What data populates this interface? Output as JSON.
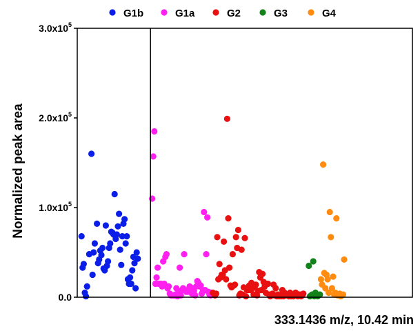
{
  "chart_data": {
    "type": "scatter",
    "title": "",
    "caption": "333.1436 m/z, 10.42 min",
    "xlabel": "",
    "ylabel": "Normalized peak area",
    "ylim": [
      0,
      300000
    ],
    "xlim": [
      0,
      300
    ],
    "y_ticks": [
      {
        "value": 0,
        "mantissa": "0.0",
        "exponent": ""
      },
      {
        "value": 100000,
        "mantissa": "1.0x10",
        "exponent": "5"
      },
      {
        "value": 200000,
        "mantissa": "2.0x10",
        "exponent": "5"
      },
      {
        "value": 300000,
        "mantissa": "3.0x10",
        "exponent": "5"
      }
    ],
    "group_separator_x": 64.5,
    "grid": false,
    "legend_position": "top",
    "series": [
      {
        "name": "G1b",
        "color": "#0a1ee8",
        "points": [
          [
            2,
            68000
          ],
          [
            3,
            33000
          ],
          [
            4,
            37000
          ],
          [
            5,
            5000
          ],
          [
            6,
            1000
          ],
          [
            7,
            12000
          ],
          [
            9,
            48000
          ],
          [
            11,
            160000
          ],
          [
            12,
            25000
          ],
          [
            13,
            50000
          ],
          [
            14,
            60000
          ],
          [
            16,
            82000
          ],
          [
            17,
            38000
          ],
          [
            18,
            42000
          ],
          [
            19,
            52000
          ],
          [
            20,
            47000
          ],
          [
            21,
            55000
          ],
          [
            22,
            32000
          ],
          [
            23,
            30000
          ],
          [
            24,
            80000
          ],
          [
            25,
            35000
          ],
          [
            26,
            40000
          ],
          [
            27,
            55000
          ],
          [
            28,
            60000
          ],
          [
            29,
            73000
          ],
          [
            30,
            72000
          ],
          [
            31,
            70000
          ],
          [
            32,
            115000
          ],
          [
            33,
            65000
          ],
          [
            34,
            70000
          ],
          [
            35,
            79000
          ],
          [
            36,
            93000
          ],
          [
            37,
            53000
          ],
          [
            38,
            36000
          ],
          [
            39,
            68000
          ],
          [
            40,
            82000
          ],
          [
            41,
            87000
          ],
          [
            42,
            60000
          ],
          [
            43,
            68000
          ],
          [
            44,
            20000
          ],
          [
            45,
            15000
          ],
          [
            46,
            22000
          ],
          [
            47,
            15000
          ],
          [
            48,
            30000
          ],
          [
            49,
            45000
          ],
          [
            50,
            38000
          ],
          [
            51,
            10000
          ],
          [
            52,
            50000
          ],
          [
            53,
            43000
          ]
        ]
      },
      {
        "name": "G1a",
        "color": "#ff20f0",
        "points": [
          [
            66,
            110000
          ],
          [
            67,
            157000
          ],
          [
            68,
            185000
          ],
          [
            69,
            15000
          ],
          [
            70,
            22000
          ],
          [
            71,
            33000
          ],
          [
            72,
            15000
          ],
          [
            73,
            15000
          ],
          [
            74,
            15000
          ],
          [
            75,
            12000
          ],
          [
            76,
            40000
          ],
          [
            77,
            15000
          ],
          [
            78,
            45000
          ],
          [
            79,
            48000
          ],
          [
            80,
            10000
          ],
          [
            81,
            12000
          ],
          [
            82,
            4000
          ],
          [
            83,
            2000
          ],
          [
            84,
            2000
          ],
          [
            85,
            2000
          ],
          [
            86,
            2000
          ],
          [
            87,
            3000
          ],
          [
            88,
            10000
          ],
          [
            89,
            1000
          ],
          [
            90,
            5000
          ],
          [
            91,
            33000
          ],
          [
            92,
            2000
          ],
          [
            93,
            8000
          ],
          [
            94,
            10000
          ],
          [
            95,
            48000
          ],
          [
            96,
            8000
          ],
          [
            97,
            6000
          ],
          [
            98,
            6000
          ],
          [
            99,
            8000
          ],
          [
            100,
            12000
          ],
          [
            101,
            6000
          ],
          [
            102,
            4000
          ],
          [
            103,
            10000
          ],
          [
            104,
            7000
          ],
          [
            105,
            2000
          ],
          [
            106,
            12000
          ],
          [
            107,
            18000
          ],
          [
            108,
            16000
          ],
          [
            109,
            12000
          ],
          [
            110,
            13000
          ],
          [
            111,
            4000
          ],
          [
            112,
            8000
          ],
          [
            113,
            95000
          ],
          [
            114,
            8000
          ],
          [
            115,
            48000
          ],
          [
            116,
            89000
          ],
          [
            117,
            6000
          ],
          [
            118,
            3000
          ],
          [
            119,
            2000
          ],
          [
            120,
            5000
          ]
        ]
      },
      {
        "name": "G2",
        "color": "#e81010",
        "points": [
          [
            121,
            5000
          ],
          [
            122,
            4000
          ],
          [
            123,
            2000
          ],
          [
            124,
            4000
          ],
          [
            125,
            67000
          ],
          [
            126,
            20000
          ],
          [
            127,
            37000
          ],
          [
            128,
            22000
          ],
          [
            129,
            25000
          ],
          [
            130,
            25000
          ],
          [
            131,
            62000
          ],
          [
            132,
            30000
          ],
          [
            133,
            20000
          ],
          [
            134,
            199000
          ],
          [
            135,
            88000
          ],
          [
            136,
            33000
          ],
          [
            137,
            13000
          ],
          [
            138,
            11000
          ],
          [
            139,
            48000
          ],
          [
            140,
            13000
          ],
          [
            141,
            14000
          ],
          [
            142,
            67000
          ],
          [
            143,
            55000
          ],
          [
            144,
            75000
          ],
          [
            145,
            2000
          ],
          [
            146,
            4000
          ],
          [
            147,
            53000
          ],
          [
            148,
            3000
          ],
          [
            149,
            11000
          ],
          [
            150,
            66000
          ],
          [
            151,
            1000
          ],
          [
            152,
            8000
          ],
          [
            153,
            8000
          ],
          [
            154,
            13000
          ],
          [
            155,
            8000
          ],
          [
            156,
            16000
          ],
          [
            157,
            10000
          ],
          [
            158,
            3000
          ],
          [
            159,
            12000
          ],
          [
            160,
            14000
          ],
          [
            161,
            2000
          ],
          [
            162,
            7000
          ],
          [
            163,
            28000
          ],
          [
            164,
            22000
          ],
          [
            165,
            8000
          ],
          [
            166,
            26000
          ],
          [
            167,
            17000
          ],
          [
            168,
            12000
          ],
          [
            169,
            5000
          ],
          [
            170,
            15000
          ],
          [
            171,
            15000
          ],
          [
            172,
            3000
          ],
          [
            173,
            1000
          ],
          [
            174,
            2000
          ],
          [
            175,
            4000
          ],
          [
            176,
            14000
          ],
          [
            177,
            2000
          ],
          [
            178,
            10000
          ],
          [
            179,
            1000
          ],
          [
            180,
            3000
          ],
          [
            181,
            1000
          ],
          [
            182,
            2000
          ],
          [
            183,
            1000
          ],
          [
            184,
            8000
          ],
          [
            185,
            1000
          ],
          [
            186,
            5000
          ],
          [
            187,
            2000
          ],
          [
            188,
            2000
          ],
          [
            189,
            3000
          ],
          [
            190,
            1000
          ],
          [
            191,
            5000
          ],
          [
            192,
            1000
          ],
          [
            193,
            2000
          ],
          [
            194,
            1000
          ],
          [
            195,
            3000
          ],
          [
            196,
            5000
          ],
          [
            197,
            4000
          ],
          [
            198,
            1000
          ],
          [
            199,
            2000
          ],
          [
            200,
            3000
          ],
          [
            201,
            1000
          ],
          [
            202,
            2000
          ],
          [
            203,
            4000
          ]
        ]
      },
      {
        "name": "G3",
        "color": "#13821b",
        "points": [
          [
            208,
            35000
          ],
          [
            209,
            1000
          ],
          [
            210,
            2000
          ],
          [
            211,
            3000
          ],
          [
            212,
            40000
          ],
          [
            213,
            1000
          ],
          [
            214,
            5000
          ],
          [
            215,
            3000
          ],
          [
            216,
            1000
          ],
          [
            217,
            2000
          ],
          [
            218,
            3000
          ]
        ]
      },
      {
        "name": "G4",
        "color": "#ff8c10",
        "points": [
          [
            219,
            20000
          ],
          [
            220,
            14000
          ],
          [
            221,
            148000
          ],
          [
            222,
            27000
          ],
          [
            223,
            10000
          ],
          [
            224,
            25000
          ],
          [
            225,
            20000
          ],
          [
            226,
            5000
          ],
          [
            227,
            95000
          ],
          [
            228,
            67000
          ],
          [
            229,
            10000
          ],
          [
            230,
            23000
          ],
          [
            231,
            3000
          ],
          [
            232,
            5000
          ],
          [
            233,
            88000
          ],
          [
            234,
            2000
          ],
          [
            235,
            3000
          ],
          [
            236,
            4000
          ],
          [
            237,
            1000
          ],
          [
            238,
            2000
          ],
          [
            239,
            3000
          ],
          [
            240,
            42000
          ]
        ]
      }
    ]
  }
}
